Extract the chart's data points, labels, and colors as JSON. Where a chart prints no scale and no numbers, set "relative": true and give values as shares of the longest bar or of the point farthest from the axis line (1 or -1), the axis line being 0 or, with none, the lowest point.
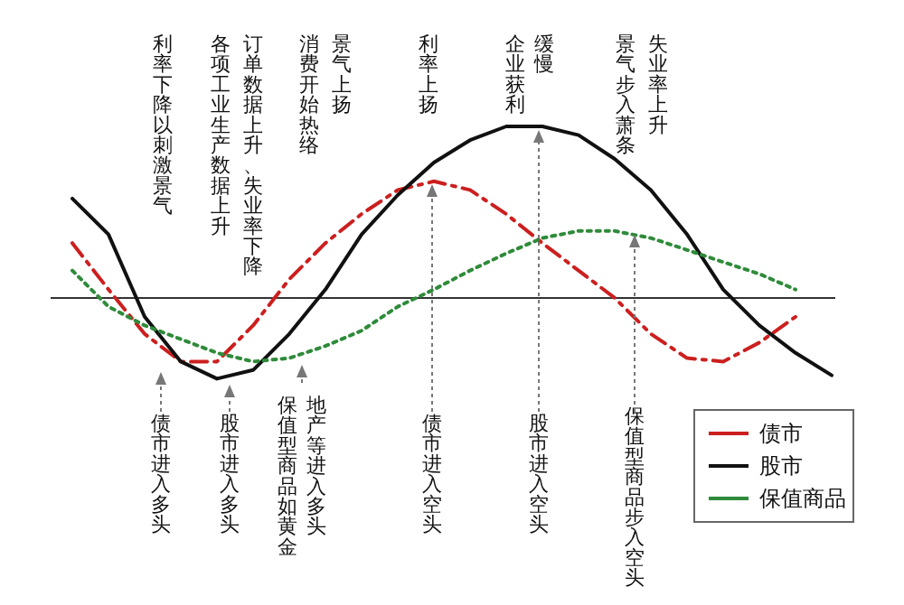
{
  "chart_data": {
    "type": "line",
    "relative": true,
    "legend": "bottom right",
    "categories": [
      null,
      null,
      null,
      null,
      null,
      null,
      null,
      null,
      null,
      null,
      null,
      null,
      null,
      null,
      null,
      null,
      null,
      null,
      null,
      null,
      null,
      null
    ],
    "series": [
      {
        "name": "债市",
        "color": "#cc1f1f",
        "line_style": "dashed",
        "values": [
          0.32,
          0.05,
          -0.21,
          -0.37,
          -0.37,
          -0.16,
          0.11,
          0.32,
          0.49,
          0.63,
          0.68,
          0.63,
          0.49,
          0.32,
          0.16,
          0,
          -0.21,
          -0.35,
          -0.37,
          -0.26,
          -0.11,
          null
        ]
      },
      {
        "name": "股市",
        "color": "#111111",
        "line_style": "solid",
        "values": [
          0.58,
          0.37,
          -0.11,
          -0.37,
          -0.47,
          -0.42,
          -0.21,
          0.05,
          0.37,
          0.6,
          0.79,
          0.92,
          1,
          1,
          0.95,
          0.81,
          0.63,
          0.37,
          0.05,
          -0.16,
          -0.32,
          -0.45
        ]
      },
      {
        "name": "保值商品",
        "color": "#2e8b3a",
        "line_style": "dotted",
        "values": [
          0.16,
          -0.05,
          -0.16,
          -0.24,
          -0.32,
          -0.37,
          -0.35,
          -0.28,
          -0.19,
          -0.05,
          0.05,
          0.16,
          0.26,
          0.35,
          0.39,
          0.39,
          0.35,
          0.28,
          0.21,
          0.14,
          0.05,
          null
        ]
      }
    ],
    "annotations": [
      "利率下降以刺激景气",
      "订单数据上升、失业率下降",
      "各项工业生产数据上升",
      "景气上扬",
      "消费开始热络",
      "利率上扬",
      "缓慢",
      "企业获利",
      "失业率上升",
      "景气步入萧条",
      "债市进入多头",
      "股市进入多头",
      "地产等进入多头",
      "保值型商品如黄金",
      "债市进入空头",
      "股市进入空头",
      "保值型商品步入空头"
    ]
  }
}
